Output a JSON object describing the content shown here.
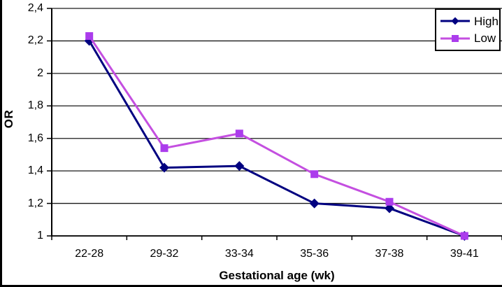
{
  "chart_data": {
    "type": "line",
    "title": "",
    "xlabel": "Gestational age (wk)",
    "ylabel": "OR",
    "categories": [
      "22-28",
      "29-32",
      "33-34",
      "35-36",
      "37-38",
      "39-41"
    ],
    "series": [
      {
        "name": "High",
        "values": [
          2.2,
          1.42,
          1.43,
          1.2,
          1.17,
          1.0
        ],
        "line_color": "#000080",
        "marker": "diamond",
        "marker_color": "#000080"
      },
      {
        "name": "Low",
        "values": [
          2.23,
          1.54,
          1.63,
          1.38,
          1.21,
          1.0
        ],
        "line_color": "#C44FE0",
        "marker": "square",
        "marker_color": "#AB3CEC"
      }
    ],
    "ylim": [
      1,
      2.4
    ],
    "yticks": [
      {
        "value": 1,
        "label": "1"
      },
      {
        "value": 1.2,
        "label": "1,2"
      },
      {
        "value": 1.4,
        "label": "1,4"
      },
      {
        "value": 1.6,
        "label": "1,6"
      },
      {
        "value": 1.8,
        "label": "1,8"
      },
      {
        "value": 2,
        "label": "2"
      },
      {
        "value": 2.2,
        "label": "2,2"
      },
      {
        "value": 2.4,
        "label": "2,4"
      }
    ],
    "grid": true,
    "legend_position": "top-right",
    "colors": {
      "gridline": "#1a1a1a",
      "axis": "#000000",
      "frame": "#000000",
      "background": "#ffffff"
    }
  }
}
